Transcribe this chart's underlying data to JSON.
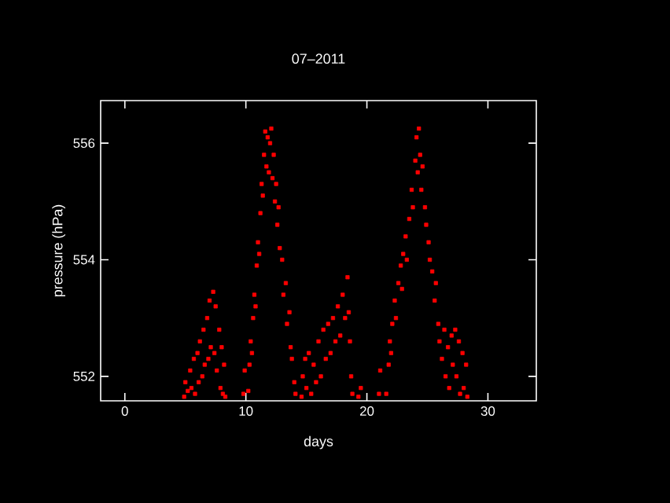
{
  "chart_data": {
    "type": "scatter",
    "title": "07–2011",
    "xlabel": "days",
    "ylabel": "pressure (hPa)",
    "xlim": [
      -2,
      34
    ],
    "ylim": [
      551.58,
      556.73
    ],
    "xticks": [
      0,
      10,
      20,
      30
    ],
    "yticks": [
      552,
      554,
      556
    ],
    "grid": false,
    "marker": "square",
    "series": [
      {
        "color": "#ff0000",
        "x": [
          4.9,
          5.0,
          5.2,
          5.4,
          5.5,
          5.7,
          5.8,
          6.0,
          6.1,
          6.2,
          6.4,
          6.5,
          6.6,
          6.8,
          6.9,
          7.0,
          7.1,
          7.3,
          7.4,
          7.5,
          7.6,
          7.8,
          7.9,
          8.0,
          8.1,
          8.2,
          8.3,
          9.8,
          9.9,
          10.2,
          10.3,
          10.4,
          10.5,
          10.6,
          10.7,
          10.8,
          10.9,
          11.0,
          11.1,
          11.2,
          11.3,
          11.4,
          11.5,
          11.6,
          11.7,
          11.8,
          11.9,
          12.0,
          12.1,
          12.2,
          12.3,
          12.4,
          12.5,
          12.6,
          12.7,
          12.8,
          13.0,
          13.1,
          13.3,
          13.4,
          13.6,
          13.7,
          13.8,
          14.0,
          14.1,
          14.6,
          14.7,
          14.9,
          15.0,
          15.2,
          15.4,
          15.6,
          15.8,
          16.0,
          16.2,
          16.4,
          16.6,
          16.8,
          17.0,
          17.2,
          17.4,
          17.6,
          17.8,
          18.0,
          18.2,
          18.4,
          18.5,
          18.6,
          18.7,
          18.8,
          19.3,
          19.5,
          21.0,
          21.1,
          21.6,
          21.8,
          21.9,
          22.0,
          22.1,
          22.3,
          22.4,
          22.6,
          22.8,
          22.9,
          23.0,
          23.2,
          23.3,
          23.5,
          23.7,
          23.8,
          24.0,
          24.1,
          24.2,
          24.3,
          24.4,
          24.5,
          24.6,
          24.8,
          24.9,
          25.1,
          25.2,
          25.4,
          25.6,
          25.7,
          25.9,
          26.0,
          26.2,
          26.4,
          26.5,
          26.7,
          26.8,
          27.0,
          27.1,
          27.3,
          27.4,
          27.6,
          27.7,
          27.9,
          28.0,
          28.2,
          28.3
        ],
        "values": [
          551.65,
          551.9,
          551.75,
          552.1,
          551.8,
          552.3,
          551.7,
          552.4,
          551.9,
          552.6,
          552.0,
          552.8,
          552.2,
          553.0,
          552.3,
          553.3,
          552.5,
          553.45,
          552.4,
          553.2,
          552.1,
          552.8,
          551.8,
          552.5,
          551.7,
          552.2,
          551.65,
          551.7,
          552.1,
          551.75,
          552.2,
          552.6,
          552.4,
          553.0,
          553.4,
          553.2,
          553.9,
          554.3,
          554.1,
          554.8,
          555.3,
          555.1,
          555.8,
          556.2,
          555.6,
          556.1,
          555.5,
          556.0,
          556.25,
          555.4,
          555.8,
          555.0,
          555.3,
          554.6,
          554.9,
          554.2,
          554.0,
          553.4,
          553.6,
          552.9,
          553.1,
          552.5,
          552.3,
          551.9,
          551.7,
          551.65,
          552.0,
          552.3,
          551.8,
          552.4,
          551.7,
          552.2,
          551.9,
          552.6,
          552.0,
          552.8,
          552.3,
          552.9,
          552.4,
          553.0,
          552.6,
          553.2,
          552.7,
          553.4,
          553.0,
          553.7,
          553.1,
          552.6,
          552.0,
          551.7,
          551.65,
          551.8,
          551.7,
          552.1,
          551.7,
          552.2,
          552.6,
          552.4,
          552.9,
          553.3,
          553.0,
          553.6,
          553.9,
          553.5,
          554.1,
          554.4,
          554.0,
          554.7,
          555.2,
          554.9,
          555.7,
          556.1,
          555.5,
          556.25,
          555.8,
          555.2,
          555.6,
          554.9,
          554.6,
          554.3,
          554.0,
          553.8,
          553.3,
          553.6,
          552.9,
          552.6,
          552.3,
          552.8,
          552.0,
          552.5,
          551.8,
          552.7,
          552.2,
          552.8,
          552.0,
          552.6,
          551.7,
          552.4,
          551.8,
          552.2,
          551.65
        ]
      }
    ]
  }
}
